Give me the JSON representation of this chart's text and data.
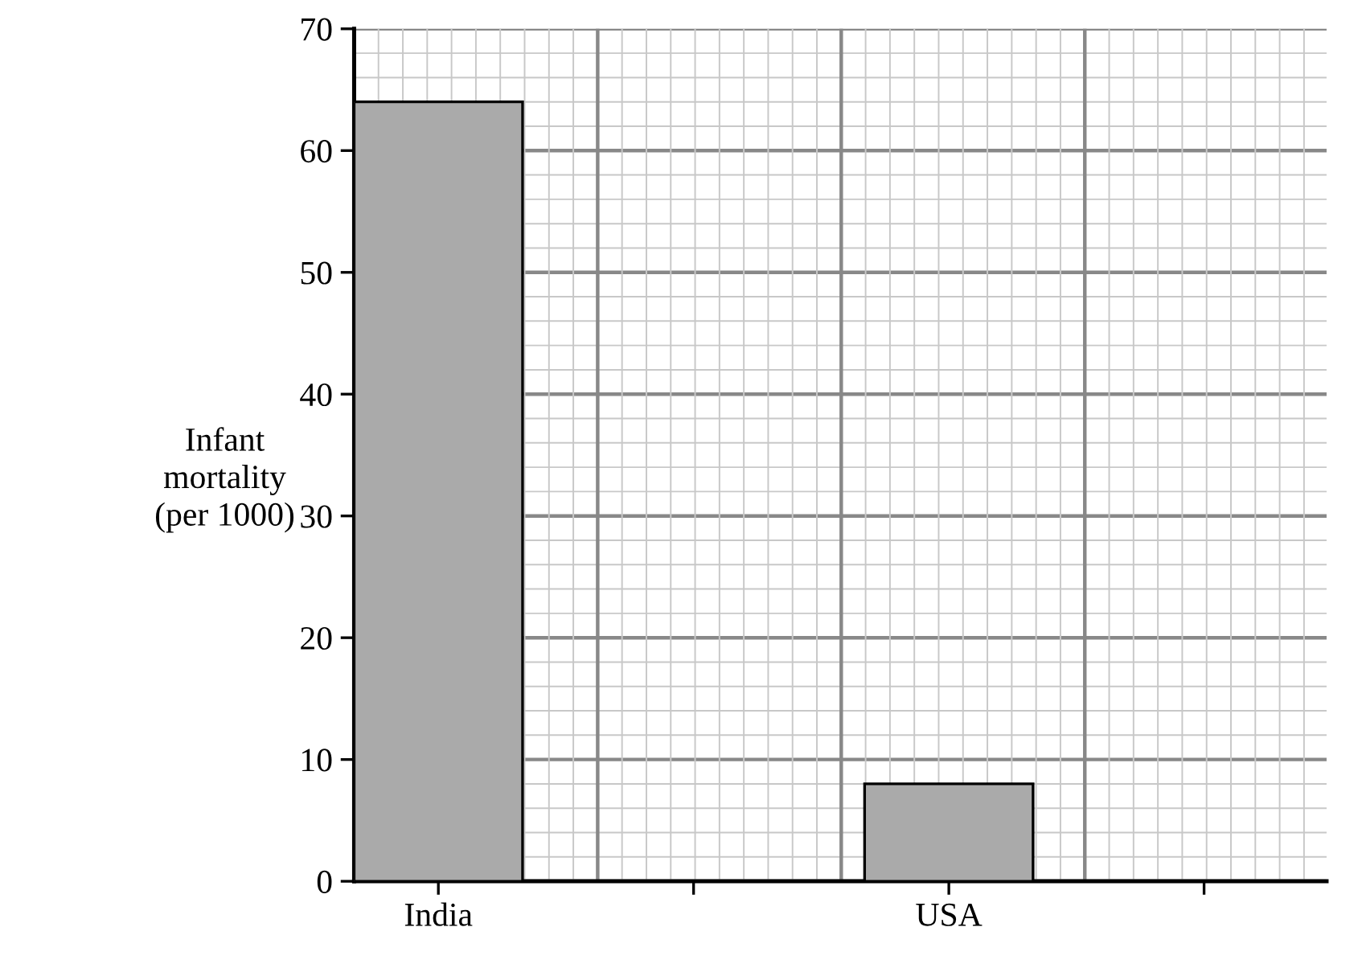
{
  "chart_data": {
    "type": "bar",
    "ylabel": "Infant\nmortality\n(per 1000)",
    "categories": [
      "India",
      null,
      "USA",
      null
    ],
    "values": [
      64,
      null,
      8,
      null
    ],
    "color": "#aaaaaa",
    "ylim": [
      0,
      70
    ],
    "yticks": [
      0,
      10,
      20,
      30,
      40,
      50,
      60,
      70
    ],
    "grid": true
  }
}
